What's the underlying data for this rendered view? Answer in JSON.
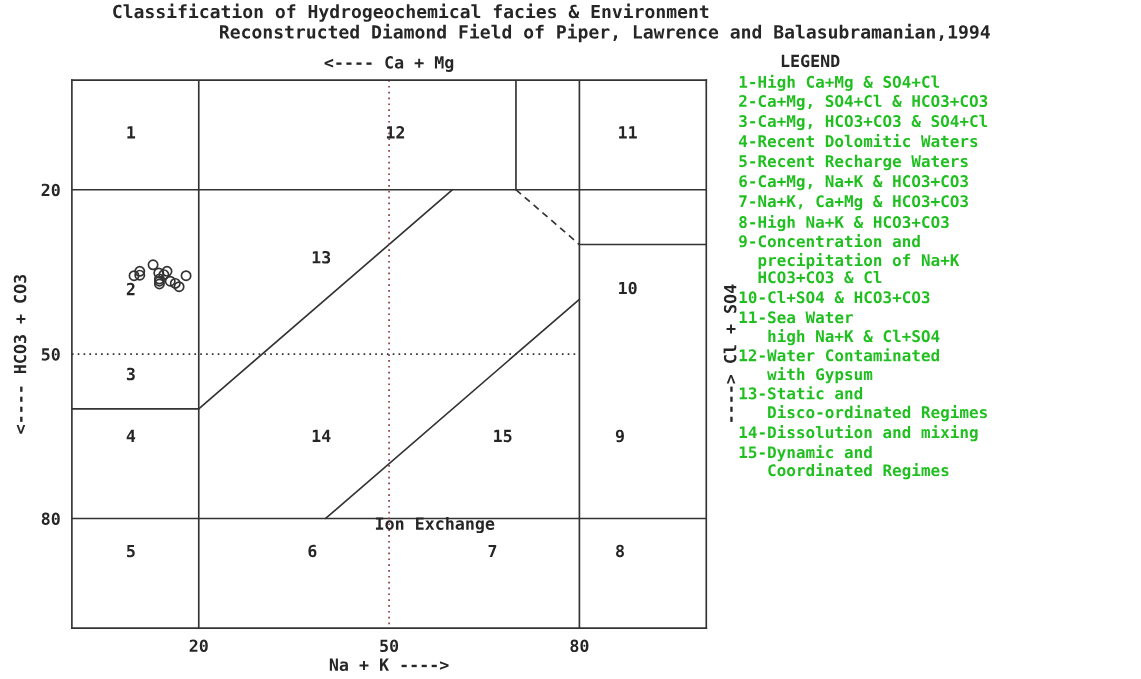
{
  "chart_data": {
    "type": "scatter",
    "title": "Classification of Hydrogeochemical facies & Environment",
    "subtitle": "Reconstructed Diamond Field of Piper, Lawrence and Balasubramanian,1994",
    "xlabel": "Na + K ---->",
    "ylabel": "<---- HCO3 + CO3",
    "x2label": "<---- Ca + Mg",
    "y2label": "----> Cl + SO4",
    "legend_title": "LEGEND",
    "xlim": [
      0,
      100
    ],
    "ylim": [
      100,
      0
    ],
    "xticks": [
      20,
      50,
      80
    ],
    "yticks": [
      20,
      50,
      80
    ],
    "series": [
      {
        "marker": "circle",
        "color": "#333333",
        "x": [
          9.8,
          10.7,
          10.7,
          12.8,
          13.7,
          15.0,
          14.5,
          13.8,
          13.8,
          13.8,
          15.5,
          16.3,
          16.9,
          18.0
        ],
        "values": [
          35.7,
          34.9,
          35.6,
          33.7,
          35.2,
          34.9,
          35.5,
          36.3,
          36.7,
          37.2,
          36.7,
          37.1,
          37.7,
          35.7
        ]
      },
      {
        "type": "line",
        "color": "#333333",
        "line_style": "solid",
        "x": [
          20,
          20
        ],
        "values": [
          0,
          100
        ]
      },
      {
        "type": "line",
        "color": "#333333",
        "line_style": "solid",
        "x": [
          80,
          80
        ],
        "values": [
          0,
          100
        ]
      },
      {
        "type": "line",
        "color": "#333333",
        "line_style": "solid",
        "x": [
          0,
          100
        ],
        "values": [
          20,
          20
        ]
      },
      {
        "type": "line",
        "color": "#333333",
        "line_style": "solid",
        "x": [
          0,
          100
        ],
        "values": [
          80,
          80
        ]
      },
      {
        "type": "line",
        "color": "#333333",
        "line_style": "solid",
        "x": [
          70,
          70
        ],
        "values": [
          0,
          20
        ]
      },
      {
        "type": "line",
        "color": "#333333",
        "line_style": "dashed",
        "x": [
          70,
          80
        ],
        "values": [
          20,
          30
        ]
      },
      {
        "type": "line",
        "color": "#333333",
        "line_style": "solid",
        "x": [
          80,
          100
        ],
        "values": [
          30,
          30
        ]
      },
      {
        "type": "line",
        "color": "#333333",
        "line_style": "solid",
        "x": [
          0,
          20,
          60
        ],
        "values": [
          60,
          60,
          20
        ]
      },
      {
        "type": "line",
        "color": "#333333",
        "line_style": "solid",
        "x": [
          40,
          80
        ],
        "values": [
          80,
          40
        ]
      },
      {
        "type": "line",
        "color": "#8b3a3a",
        "line_style": "dotted",
        "x": [
          50,
          50
        ],
        "values": [
          0,
          100
        ]
      },
      {
        "type": "line",
        "color": "#333333",
        "line_style": "dotted",
        "x": [
          0,
          80
        ],
        "values": [
          50,
          50
        ]
      }
    ],
    "annotations": [
      "1",
      "12",
      "11",
      "13",
      "2",
      "10",
      "3",
      "4",
      "14",
      "15",
      "9",
      "Ion Exchange",
      "5",
      "6",
      "7",
      "8",
      "1-High Ca+Mg & SO4+Cl",
      "2-Ca+Mg, SO4+Cl & HCO3+CO3",
      "3-Ca+Mg, HCO3+CO3 & SO4+Cl",
      "4-Recent Dolomitic Waters",
      "5-Recent Recharge Waters",
      "6-Ca+Mg, Na+K & HCO3+CO3",
      "7-Na+K, Ca+Mg & HCO3+CO3",
      "8-High Na+K & HCO3+CO3",
      "9-Concentration and\n  precipitation of Na+K\n  HCO3+CO3 & Cl",
      "10-Cl+SO4 & HCO3+CO3",
      "11-Sea Water\n   high Na+K & Cl+SO4",
      "12-Water Contaminated\n   with Gypsum",
      "13-Static and\n   Disco-ordinated Regimes",
      "14-Dissolution and mixing",
      "15-Dynamic and\n   Coordinated Regimes"
    ]
  }
}
